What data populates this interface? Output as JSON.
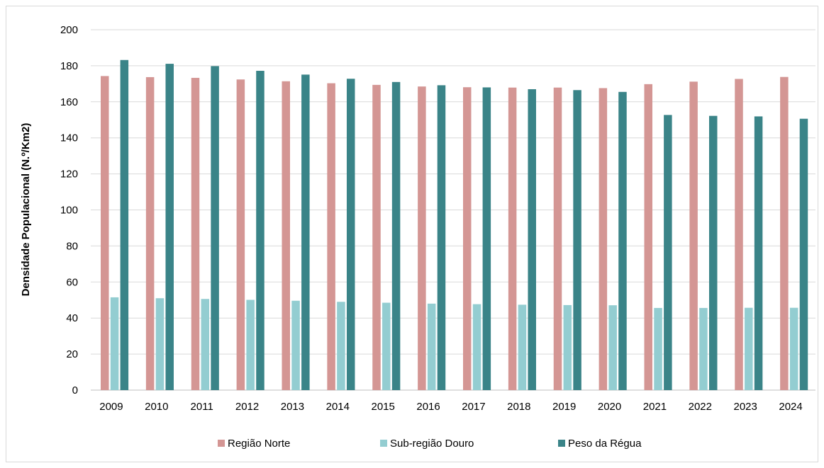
{
  "chart_data": {
    "type": "bar",
    "title": "",
    "xlabel": "",
    "ylabel": "Densidade Populacional (N.º/Km2)",
    "ylim": [
      0,
      200
    ],
    "yticks": [
      0,
      20,
      40,
      60,
      80,
      100,
      120,
      140,
      160,
      180,
      200
    ],
    "grid": true,
    "legend_position": "bottom",
    "categories": [
      "2009",
      "2010",
      "2011",
      "2012",
      "2013",
      "2014",
      "2015",
      "2016",
      "2017",
      "2018",
      "2019",
      "2020",
      "2021",
      "2022",
      "2023",
      "2024"
    ],
    "series": [
      {
        "name": "Região Norte",
        "color": "#d49694",
        "values": [
          174.3,
          173.7,
          173.3,
          172.4,
          171.4,
          170.3,
          169.4,
          168.5,
          168.1,
          167.9,
          167.9,
          167.6,
          169.8,
          171.2,
          172.7,
          173.8
        ]
      },
      {
        "name": "Sub-região Douro",
        "color": "#93cdd1",
        "values": [
          51.5,
          51.0,
          50.6,
          50.1,
          49.6,
          49.0,
          48.5,
          48.0,
          47.7,
          47.4,
          47.2,
          47.1,
          45.6,
          45.6,
          45.7,
          45.7
        ]
      },
      {
        "name": "Peso da Régua",
        "color": "#3a8488",
        "values": [
          183.2,
          181.1,
          179.8,
          177.2,
          175.1,
          172.8,
          171.0,
          169.2,
          168.0,
          167.0,
          166.5,
          165.5,
          152.7,
          152.2,
          151.9,
          150.6
        ]
      }
    ]
  }
}
